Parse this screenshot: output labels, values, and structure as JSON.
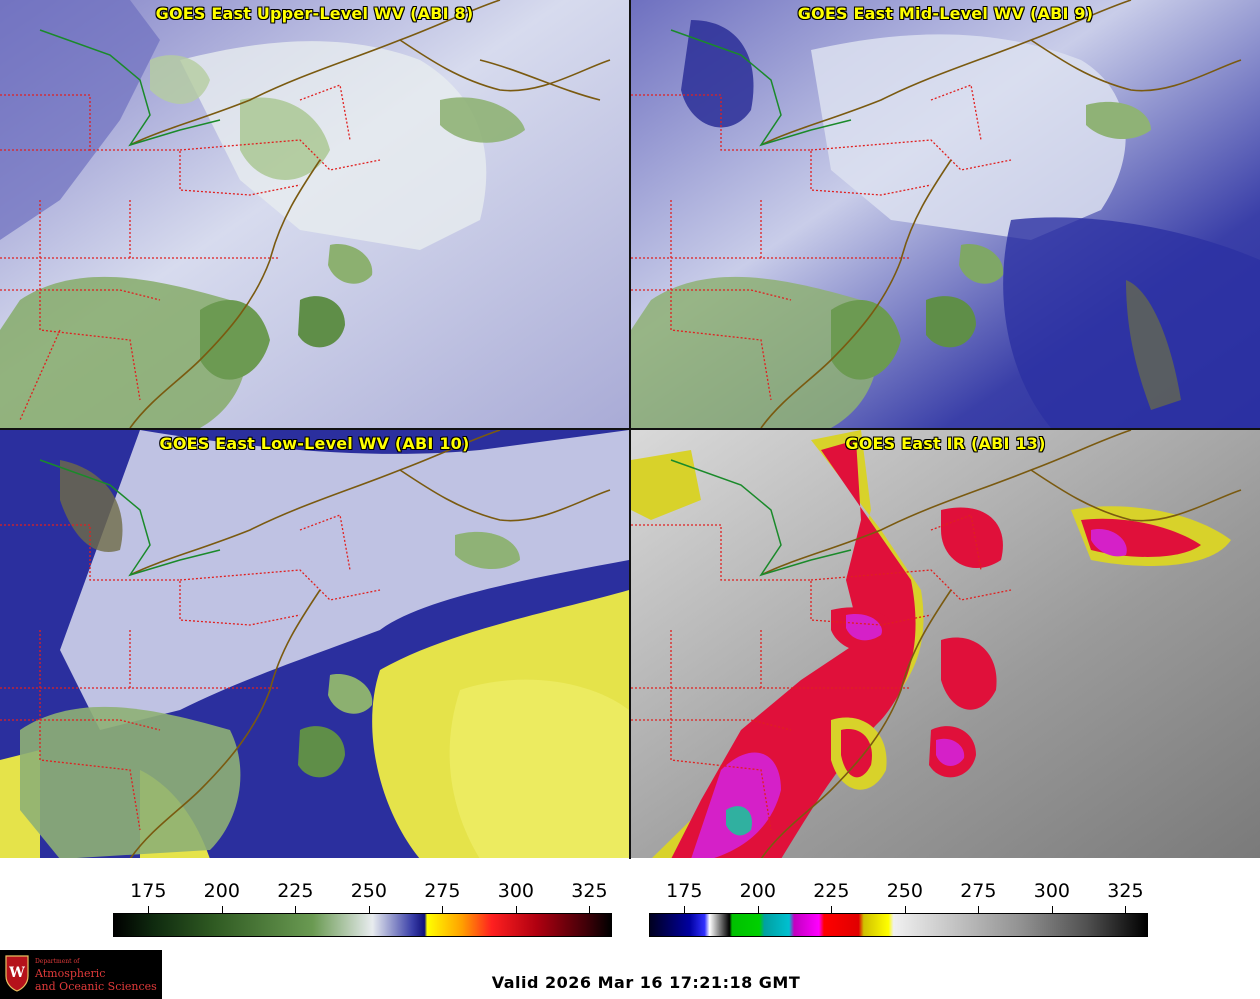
{
  "panels": [
    {
      "title": "GOES East Upper-Level WV (ABI 8)"
    },
    {
      "title": "GOES East Mid-Level WV (ABI 9)"
    },
    {
      "title": "GOES East Low-Level WV (ABI 10)"
    },
    {
      "title": "GOES East IR (ABI 13)"
    }
  ],
  "colorbars": [
    {
      "name": "wv-colorbar",
      "ticks": [
        "175",
        "200",
        "225",
        "250",
        "275",
        "300",
        "325"
      ],
      "range": [
        163,
        332
      ]
    },
    {
      "name": "ir-colorbar",
      "ticks": [
        "175",
        "200",
        "225",
        "250",
        "275",
        "300",
        "325"
      ],
      "range": [
        163,
        332
      ]
    }
  ],
  "valid_time": "Valid 2026 Mar 16 17:21:18 GMT",
  "logo": {
    "dept_line": "Department of",
    "line1": "Atmospheric",
    "line2": "and Oceanic Sciences",
    "letter": "W"
  },
  "colors": {
    "title_text": "#ffff00",
    "state_border": "#e02020",
    "coastline": "#7a5a10",
    "intl_border": "#1a8a2a"
  }
}
